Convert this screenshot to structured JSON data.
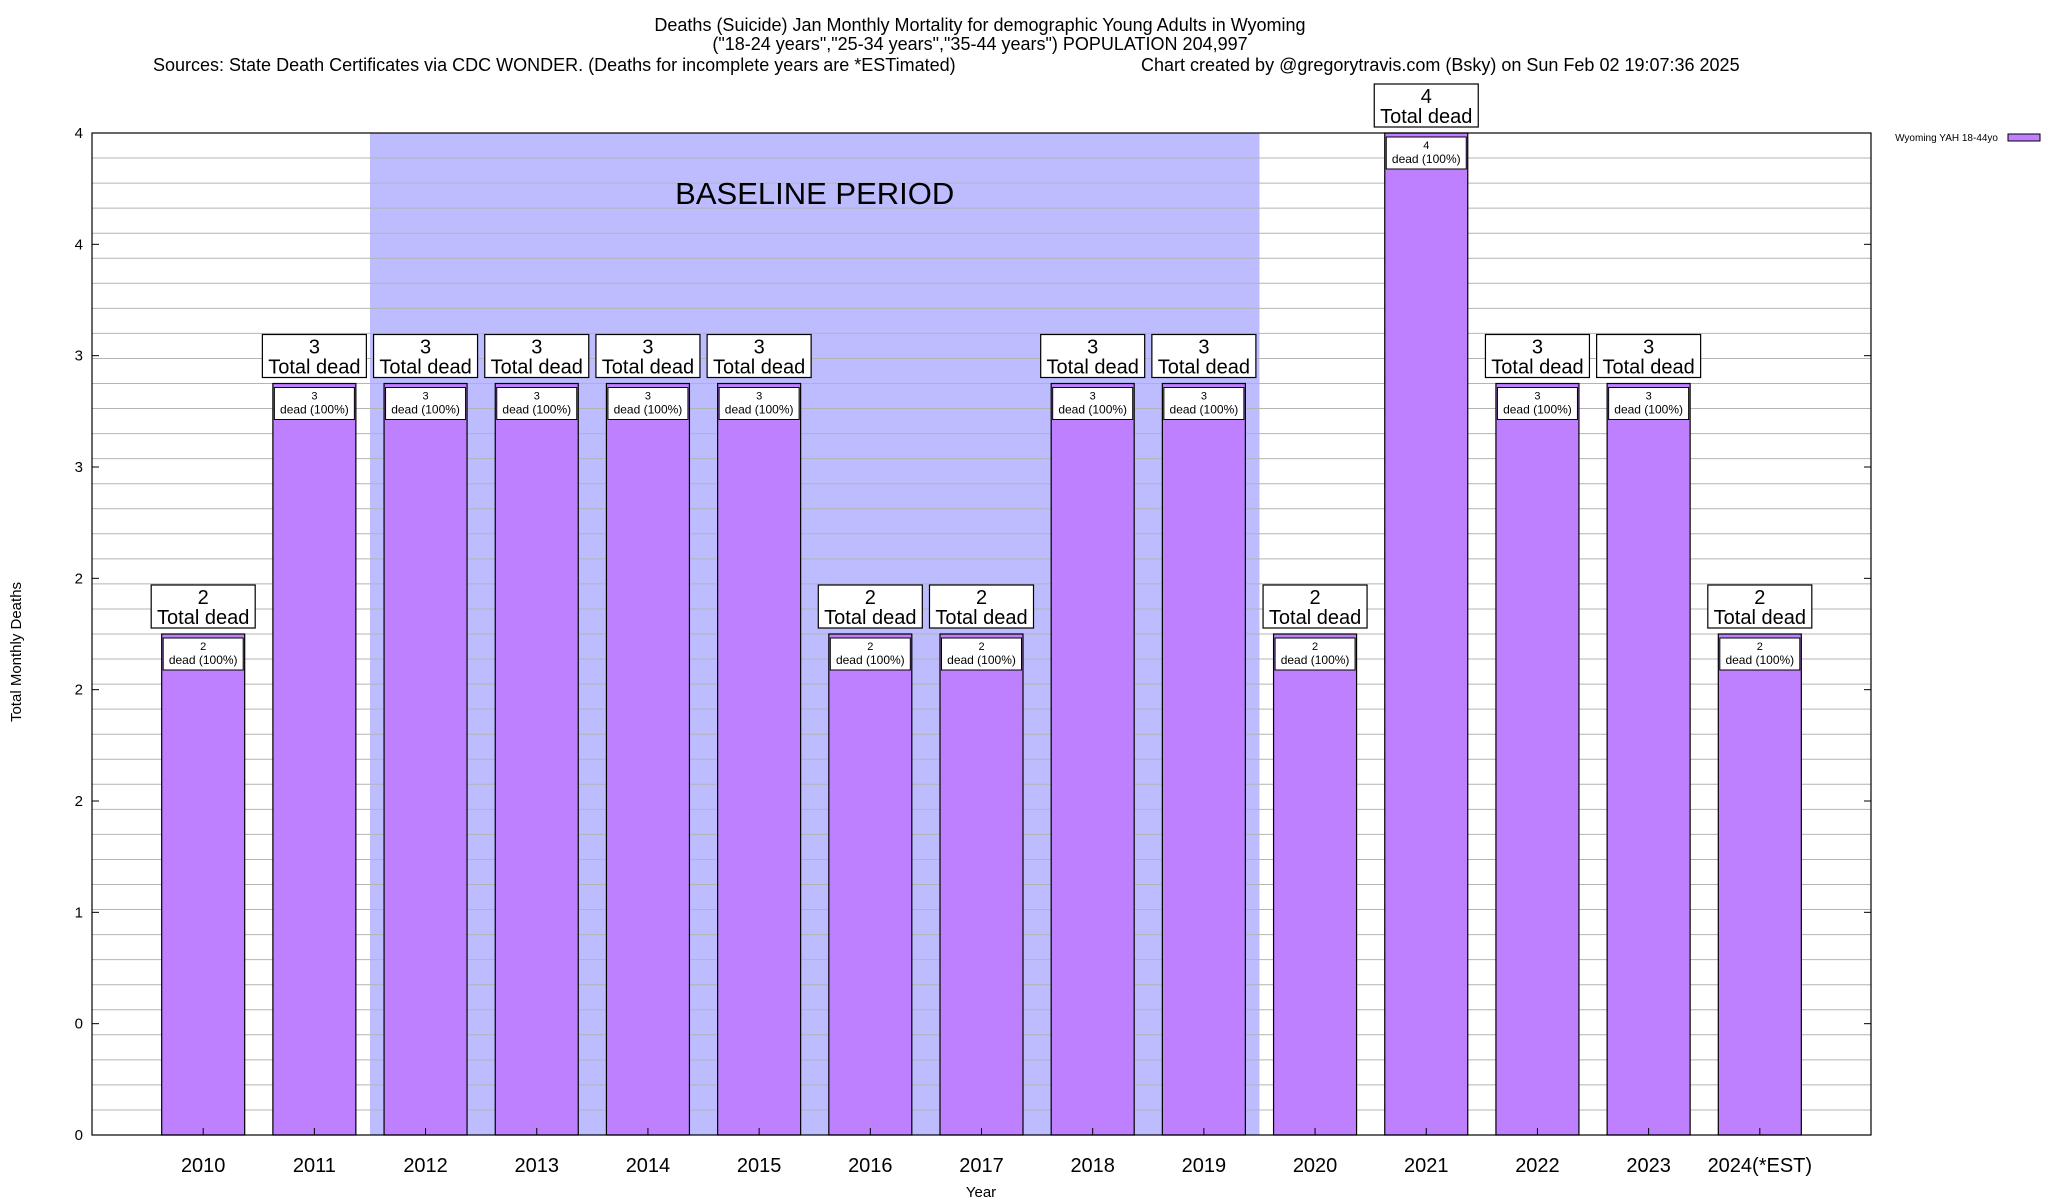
{
  "chart_data": {
    "type": "bar",
    "title_lines": [
      "Deaths (Suicide) Jan Monthly Mortality for demographic Young Adults in Wyoming",
      "(\"18-24 years\",\"25-34 years\",\"35-44 years\") POPULATION 204,997"
    ],
    "sources": "Sources: State Death Certificates via CDC WONDER. (Deaths for incomplete years are *ESTimated)",
    "credit": "Chart created by @gregorytravis.com (Bsky) on Sun Feb 02 19:07:36 2025",
    "xlabel": "Year",
    "ylabel": "Total Monthly Deaths",
    "categories": [
      "2010",
      "2011",
      "2012",
      "2013",
      "2014",
      "2015",
      "2016",
      "2017",
      "2018",
      "2019",
      "2020",
      "2021",
      "2022",
      "2023",
      "2024(*EST)"
    ],
    "series": [
      {
        "name": "Wyoming YAH 18-44yo",
        "color": "#bf80ff",
        "values": [
          2,
          3,
          3,
          3,
          3,
          3,
          2,
          2,
          3,
          3,
          2,
          4,
          3,
          3,
          2
        ]
      }
    ],
    "ylim": [
      0,
      4
    ],
    "y_tick_labels": [
      "0",
      "0",
      "1",
      "2",
      "2",
      "2",
      "3",
      "3",
      "4",
      "4"
    ],
    "grid": true,
    "legend_position": "top-right",
    "baseline_period": {
      "label": "BASELINE PERIOD",
      "start": "2012",
      "end": "2019",
      "color": "#bcbcff"
    },
    "top_labels": {
      "values": [
        "2",
        "3",
        "3",
        "3",
        "3",
        "3",
        "2",
        "2",
        "3",
        "3",
        "2",
        "4",
        "3",
        "3",
        "2"
      ],
      "caption": "Total dead"
    },
    "inner_labels": {
      "values": [
        "2",
        "3",
        "3",
        "3",
        "3",
        "3",
        "2",
        "2",
        "3",
        "3",
        "2",
        "4",
        "3",
        "3",
        "2"
      ],
      "caption": "dead (100%)"
    }
  }
}
